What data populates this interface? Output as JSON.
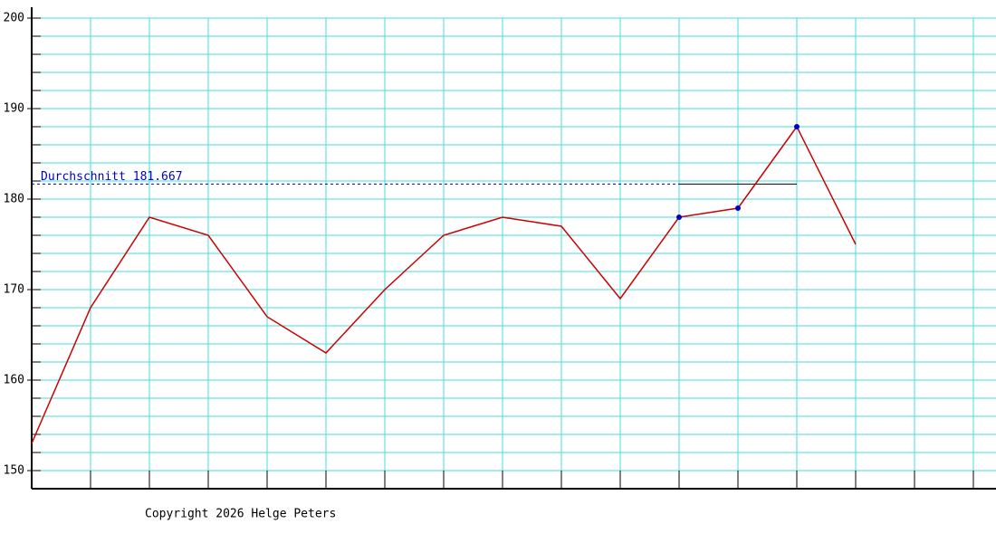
{
  "chart_data": {
    "type": "line",
    "categories": [
      null,
      null,
      null,
      null,
      null,
      null,
      null,
      null,
      null,
      null,
      null,
      null,
      null,
      null,
      null,
      null,
      null
    ],
    "series": [
      {
        "color": "#cc0000",
        "values": [
          153,
          168,
          178,
          176,
          167,
          163,
          170,
          176,
          178,
          177,
          169,
          178,
          179,
          188,
          175,
          null,
          null
        ]
      }
    ],
    "ylim": [
      148,
      201.2
    ],
    "yticks": [
      150,
      160,
      170,
      180,
      190,
      200
    ],
    "yminorticks": [
      150,
      152,
      154,
      156,
      158,
      160,
      162,
      164,
      166,
      168,
      170,
      172,
      174,
      176,
      178,
      180,
      182,
      184,
      186,
      188,
      190,
      192,
      194,
      196,
      198,
      200
    ],
    "grid": true,
    "grid_color": "#44dddd",
    "marker_color": "#0000cc",
    "average": {
      "value": 181.667,
      "label": "Durchschnitt 181.667",
      "from_index": 11,
      "to_index": 13,
      "color": "#0000cc"
    },
    "footer": "Copyright 2026 Helge Peters"
  }
}
